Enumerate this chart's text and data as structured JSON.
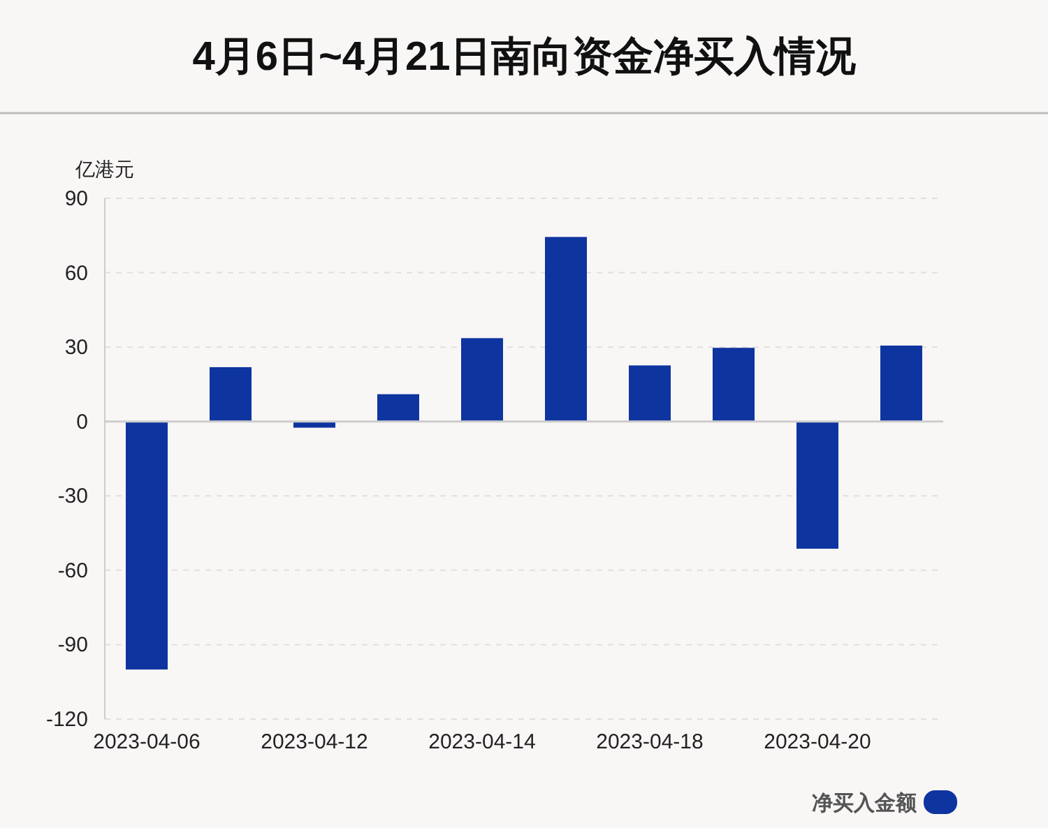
{
  "chart_data": {
    "type": "bar",
    "title": "4月6日~4月21日南向资金净买入情况",
    "ylabel": "亿港元",
    "categories": [
      "2023-04-06",
      null,
      "2023-04-12",
      null,
      "2023-04-14",
      null,
      "2023-04-18",
      null,
      "2023-04-20",
      null
    ],
    "series": [
      {
        "name": "净买入金额",
        "color": "#0e34a0",
        "values": [
          -100,
          21.9,
          -2.5,
          11,
          33.6,
          74.4,
          22.6,
          29.7,
          -51.3,
          30.6
        ]
      }
    ],
    "ylim": [
      -120,
      90
    ],
    "yticks": [
      -120,
      -90,
      -60,
      -30,
      0,
      30,
      60,
      90
    ],
    "grid": "y",
    "legend": "bottom right"
  }
}
